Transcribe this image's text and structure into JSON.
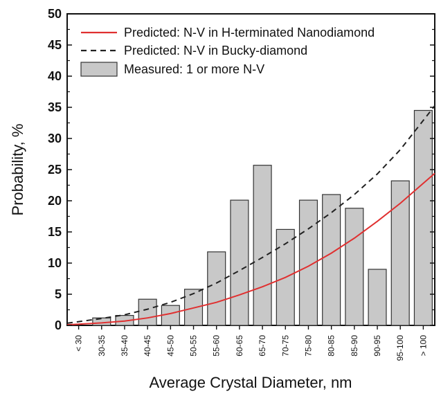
{
  "chart_data": {
    "type": "bar",
    "title": "",
    "xlabel": "Average Crystal Diameter, nm",
    "ylabel": "Probability, %",
    "ylim": [
      0,
      50
    ],
    "yticks": [
      0,
      5,
      10,
      15,
      20,
      25,
      30,
      35,
      40,
      45,
      50
    ],
    "legend_position": "top-left",
    "grid": false,
    "categories": [
      "< 30",
      "30-35",
      "35-40",
      "40-45",
      "45-50",
      "50-55",
      "55-60",
      "60-65",
      "65-70",
      "70-75",
      "75-80",
      "80-85",
      "85-90",
      "90-95",
      "95-100",
      "> 100"
    ],
    "series": [
      {
        "name": "Measured: 1 or more N-V",
        "kind": "bar",
        "color": "#c8c8c8",
        "values": [
          0,
          1.2,
          1.6,
          4.2,
          3.2,
          5.8,
          11.8,
          20.1,
          25.7,
          15.4,
          20.1,
          21.0,
          18.8,
          9.0,
          23.2,
          34.5
        ]
      },
      {
        "name": "Predicted: N-V in H-terminated Nanodiamond",
        "kind": "line",
        "color": "#e03030",
        "dash": "solid",
        "values": [
          0.2,
          0.4,
          0.7,
          1.2,
          1.9,
          2.8,
          3.7,
          4.9,
          6.2,
          7.7,
          9.5,
          11.6,
          14.0,
          16.7,
          19.6,
          22.8
        ]
      },
      {
        "name": "Predicted: N-V in Bucky-diamond",
        "kind": "line",
        "color": "#222222",
        "dash": "dashed",
        "values": [
          0.6,
          1.1,
          1.7,
          2.6,
          3.7,
          5.1,
          6.8,
          8.8,
          10.9,
          13.1,
          15.5,
          18.1,
          21.0,
          24.3,
          28.2,
          32.9
        ]
      }
    ]
  }
}
